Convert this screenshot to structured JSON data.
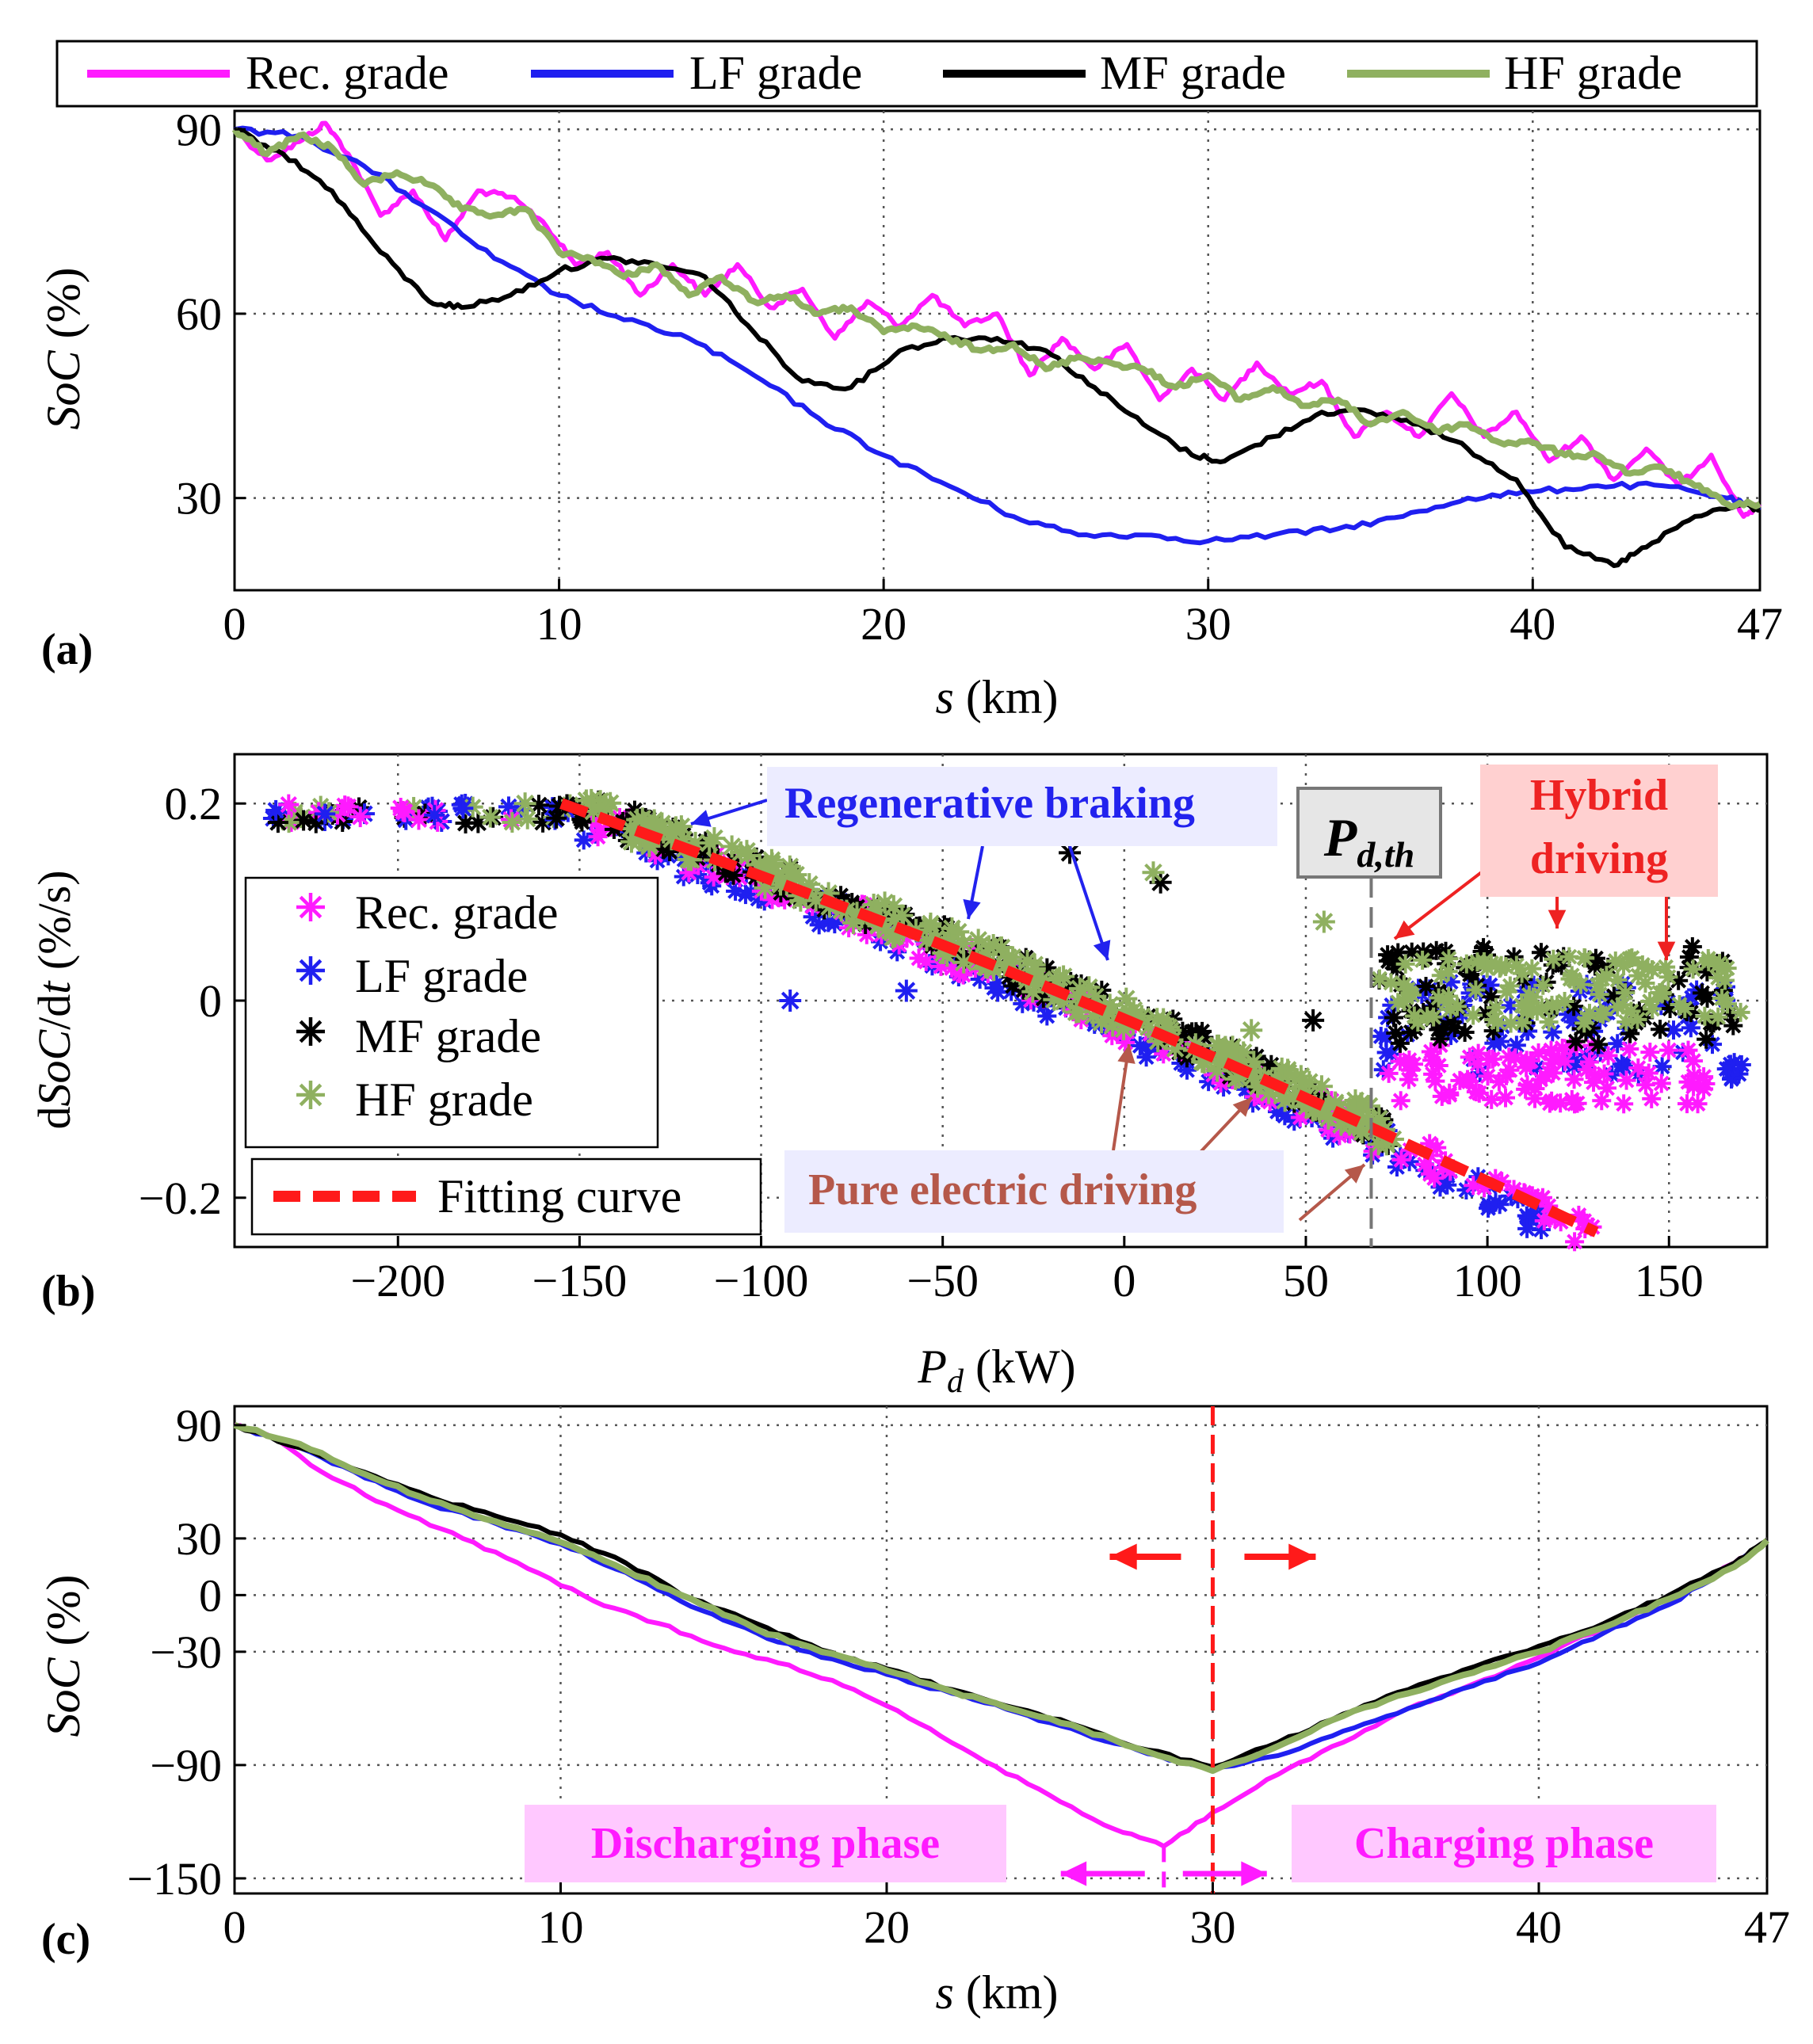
{
  "colors": {
    "rec": "#ff1aff",
    "lf": "#1f1ff0",
    "mf": "#000000",
    "hf": "#8fb060",
    "fit": "#ff1a1a",
    "brown": "#b5584a",
    "blue_text": "#2222ee",
    "red_text": "#ee2222",
    "pink_box": "#ffc8ff",
    "red_box": "#ffd0d0",
    "lav_box": "#ececff"
  },
  "chart_data": [
    {
      "type": "line",
      "panel_label": "(a)",
      "title": "",
      "xlabel_var": "s",
      "xlabel_unit": "(km)",
      "ylabel_var": "SoC",
      "ylabel_unit": "(%)",
      "xlim": [
        0,
        47
      ],
      "ylim": [
        15,
        93
      ],
      "xticks": [
        0,
        10,
        20,
        30,
        40,
        47
      ],
      "yticks": [
        30,
        60,
        90
      ],
      "grid": true,
      "legend": [
        "Rec. grade",
        "LF grade",
        "MF grade",
        "HF grade"
      ],
      "series": [
        {
          "name": "Rec. grade",
          "x": [
            0,
            1,
            2,
            2.8,
            3.5,
            4.5,
            5.5,
            6.5,
            7.5,
            8.5,
            9.5,
            10.5,
            11.5,
            12.5,
            13.5,
            14.5,
            15.5,
            16.5,
            17.5,
            18.5,
            19.5,
            20.5,
            21.5,
            22.5,
            23.5,
            24.5,
            25.5,
            26.5,
            27.5,
            28.5,
            29.5,
            30.5,
            31.5,
            32.5,
            33.5,
            34.5,
            35.5,
            36.5,
            37.5,
            38.5,
            39.5,
            40.5,
            41.5,
            42.5,
            43.5,
            44.5,
            45.5,
            46.5,
            47
          ],
          "y": [
            90,
            85,
            88,
            91,
            86,
            76,
            80,
            72,
            80,
            79,
            75,
            68,
            70,
            63,
            68,
            63,
            68,
            61,
            64,
            56,
            62,
            58,
            63,
            58,
            60,
            50,
            56,
            51,
            55,
            46,
            51,
            46,
            52,
            47,
            49,
            40,
            44,
            40,
            47,
            40,
            44,
            36,
            40,
            33,
            38,
            32,
            37,
            27,
            29
          ]
        },
        {
          "name": "LF grade",
          "x": [
            0,
            2,
            4,
            6,
            8,
            10,
            12,
            14,
            16,
            18,
            20,
            22,
            24,
            26,
            28,
            30,
            32,
            34,
            36,
            38,
            40,
            42,
            44,
            46,
            47
          ],
          "y": [
            90,
            89,
            84,
            77,
            69,
            63,
            59,
            56,
            50,
            43,
            37,
            32,
            27,
            24,
            24,
            23,
            24,
            25,
            27,
            30,
            31,
            32,
            32,
            30,
            28
          ]
        },
        {
          "name": "MF grade",
          "x": [
            0,
            1.5,
            3,
            4.5,
            6,
            7,
            8.5,
            10,
            11.5,
            13,
            14.5,
            16,
            17.5,
            19,
            20.5,
            22,
            23.5,
            25,
            26.5,
            28,
            29.5,
            30.5,
            32,
            33.5,
            35,
            36.5,
            38,
            39.5,
            41,
            42.5,
            43.5,
            45,
            46.5,
            47
          ],
          "y": [
            90,
            86,
            80,
            70,
            62,
            61,
            63,
            67,
            69,
            68,
            66,
            57,
            49,
            48,
            54,
            56,
            56,
            54,
            48,
            42,
            37,
            36,
            40,
            44,
            44,
            42,
            38,
            33,
            22,
            19,
            22,
            27,
            29,
            28
          ]
        },
        {
          "name": "HF grade",
          "x": [
            0,
            1,
            2,
            3,
            4,
            5,
            6,
            7,
            8,
            9,
            10,
            11,
            12,
            13,
            14,
            15,
            16,
            17,
            18,
            19,
            20,
            21,
            22,
            23,
            24,
            25,
            26,
            27,
            28,
            29,
            30,
            31,
            32,
            33,
            34,
            35,
            36,
            37,
            38,
            39,
            40,
            41,
            42,
            43,
            44,
            45,
            46,
            47
          ],
          "y": [
            90,
            86,
            89,
            87,
            81,
            83,
            81,
            77,
            76,
            77,
            70,
            69,
            66,
            68,
            63,
            66,
            62,
            63,
            60,
            61,
            57,
            58,
            56,
            54,
            55,
            51,
            53,
            52,
            51,
            48,
            50,
            46,
            48,
            45,
            46,
            42,
            44,
            41,
            42,
            39,
            39,
            37,
            37,
            34,
            35,
            32,
            29,
            29
          ]
        }
      ]
    },
    {
      "type": "scatter",
      "panel_label": "(b)",
      "xlabel_var": "P",
      "xlabel_sub": "d",
      "xlabel_unit": "(kW)",
      "ylabel_pre": "d",
      "ylabel_var": "SoC",
      "ylabel_mid": "/d",
      "ylabel_var2": "t",
      "ylabel_unit": "(%/s)",
      "xlim": [
        -245,
        177
      ],
      "ylim": [
        -0.25,
        0.25
      ],
      "xticks": [
        -200,
        -150,
        -100,
        -50,
        0,
        50,
        100,
        150
      ],
      "xtick_labels": [
        "−200",
        "−150",
        "−100",
        "−50",
        "0",
        "50",
        "100",
        "150"
      ],
      "yticks": [
        -0.2,
        0,
        0.2
      ],
      "ytick_labels": [
        "−0.2",
        "0",
        "0.2"
      ],
      "grid": true,
      "legend": [
        "Rec. grade",
        "LF grade",
        "MF grade",
        "HF grade",
        "Fitting curve"
      ],
      "threshold": {
        "x": 68,
        "label_var": "P",
        "label_sub": "d,th"
      },
      "fitting_curve": {
        "x": [
          -155,
          130
        ],
        "y": [
          0.2,
          -0.235
        ]
      },
      "outliers": [
        {
          "series": "LF grade",
          "x": -92,
          "y": 0.0
        },
        {
          "series": "LF grade",
          "x": -60,
          "y": 0.01
        },
        {
          "series": "MF grade",
          "x": 10,
          "y": 0.12
        },
        {
          "series": "MF grade",
          "x": -15,
          "y": 0.15
        },
        {
          "series": "MF grade",
          "x": 52,
          "y": -0.02
        },
        {
          "series": "HF grade",
          "x": 55,
          "y": 0.08
        },
        {
          "series": "HF grade",
          "x": 8,
          "y": 0.13
        },
        {
          "series": "HF grade",
          "x": 35,
          "y": -0.03
        },
        {
          "series": "HF grade",
          "x": -165,
          "y": 0.2
        }
      ],
      "annotations": {
        "regen": "Regenerative braking",
        "hybrid1": "Hybrid",
        "hybrid2": "driving",
        "pure": "Pure electric driving"
      }
    },
    {
      "type": "line",
      "panel_label": "(c)",
      "xlabel_var": "s",
      "xlabel_unit": "(km)",
      "ylabel_var": "SoC",
      "ylabel_unit": "(%)",
      "xlim": [
        0,
        47
      ],
      "ylim": [
        -158,
        100
      ],
      "xticks": [
        0,
        10,
        20,
        30,
        40,
        47
      ],
      "yticks": [
        -150,
        -90,
        -30,
        0,
        30,
        90
      ],
      "ytick_labels": [
        "−150",
        "−90",
        "−30",
        "0",
        "30",
        "90"
      ],
      "grid": true,
      "divider_x": 30,
      "rec_min_x": 28.5,
      "series": [
        {
          "name": "Rec. grade",
          "x": [
            0,
            1,
            3,
            5,
            7,
            9,
            11,
            13,
            15,
            17,
            19,
            21,
            23,
            25,
            27,
            28.5,
            30,
            32,
            34,
            36,
            38,
            40,
            42,
            44,
            46,
            47
          ],
          "y": [
            90,
            85,
            62,
            45,
            30,
            14,
            -3,
            -15,
            -28,
            -37,
            -50,
            -68,
            -88,
            -106,
            -124,
            -133,
            -115,
            -95,
            -78,
            -60,
            -47,
            -33,
            -17,
            -2,
            17,
            29
          ]
        },
        {
          "name": "LF grade",
          "x": [
            0,
            2,
            4,
            6,
            8,
            10,
            12,
            14,
            16,
            18,
            20,
            22,
            24,
            26,
            28,
            30,
            32,
            34,
            36,
            38,
            40,
            42,
            44,
            46,
            47
          ],
          "y": [
            90,
            78,
            62,
            48,
            38,
            27,
            12,
            -6,
            -20,
            -33,
            -42,
            -52,
            -62,
            -73,
            -84,
            -92,
            -85,
            -72,
            -60,
            -48,
            -36,
            -20,
            -5,
            16,
            29
          ]
        },
        {
          "name": "MF grade",
          "x": [
            0,
            2,
            4,
            6,
            8,
            10,
            12,
            14,
            16,
            18,
            20,
            22,
            24,
            26,
            28,
            30,
            32,
            34,
            36,
            38,
            40,
            42,
            44,
            46,
            47
          ],
          "y": [
            90,
            78,
            65,
            52,
            42,
            32,
            17,
            -2,
            -15,
            -29,
            -39,
            -50,
            -60,
            -70,
            -82,
            -91,
            -78,
            -63,
            -50,
            -38,
            -27,
            -15,
            0,
            17,
            29
          ]
        },
        {
          "name": "HF grade",
          "x": [
            0,
            2,
            4,
            6,
            8,
            10,
            12,
            14,
            16,
            18,
            20,
            22,
            24,
            26,
            28,
            30,
            32,
            34,
            36,
            38,
            40,
            42,
            44,
            46,
            47
          ],
          "y": [
            90,
            80,
            64,
            50,
            39,
            28,
            13,
            -2,
            -18,
            -30,
            -40,
            -51,
            -61,
            -71,
            -83,
            -93,
            -80,
            -64,
            -52,
            -41,
            -30,
            -17,
            -2,
            15,
            29
          ]
        }
      ],
      "annotations": {
        "discharging": "Discharging phase",
        "charging": "Charging phase"
      }
    }
  ]
}
